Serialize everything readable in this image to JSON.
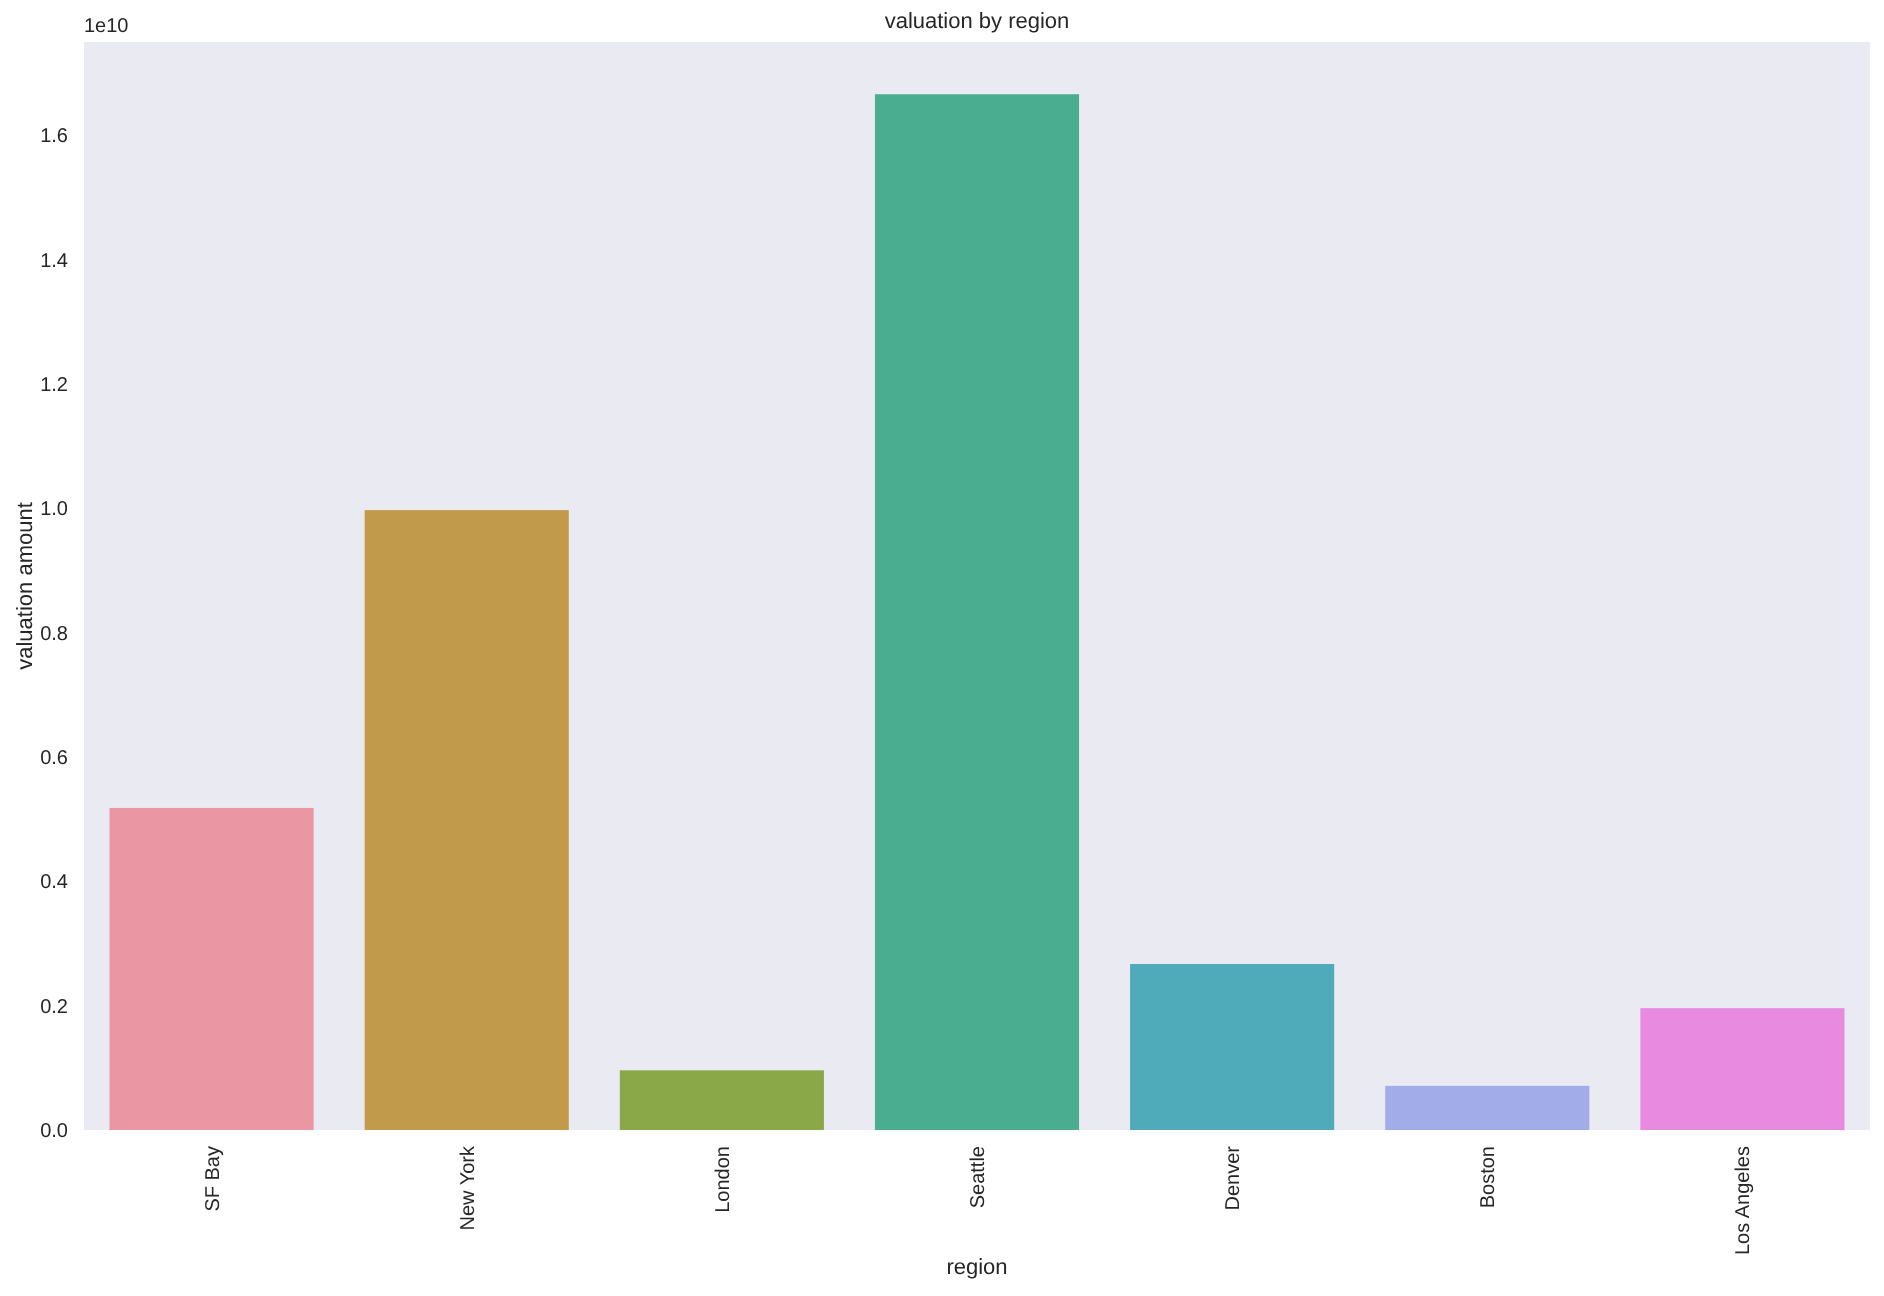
{
  "chart_data": {
    "type": "bar",
    "title": "valuation by region",
    "xlabel": "region",
    "ylabel": "valuation amount",
    "categories": [
      "SF Bay",
      "New York",
      "London",
      "Seattle",
      "Denver",
      "Boston",
      "Los Angeles"
    ],
    "values": [
      0.518,
      0.997,
      0.096,
      1.666,
      0.267,
      0.071,
      0.196
    ],
    "colors": [
      "#ea96a3",
      "#c19a4b",
      "#8aa848",
      "#4aad8f",
      "#4faab9",
      "#a1ace8",
      "#e88ae0"
    ],
    "ylim": [
      0,
      1.75
    ],
    "yticks": [
      {
        "value": 0,
        "label": "0.0"
      },
      0.2,
      0.4,
      0.6,
      0.8,
      {
        "value": 1,
        "label": "1.0"
      },
      1.2,
      1.4,
      1.6
    ],
    "annotations": [
      "1e10"
    ]
  }
}
